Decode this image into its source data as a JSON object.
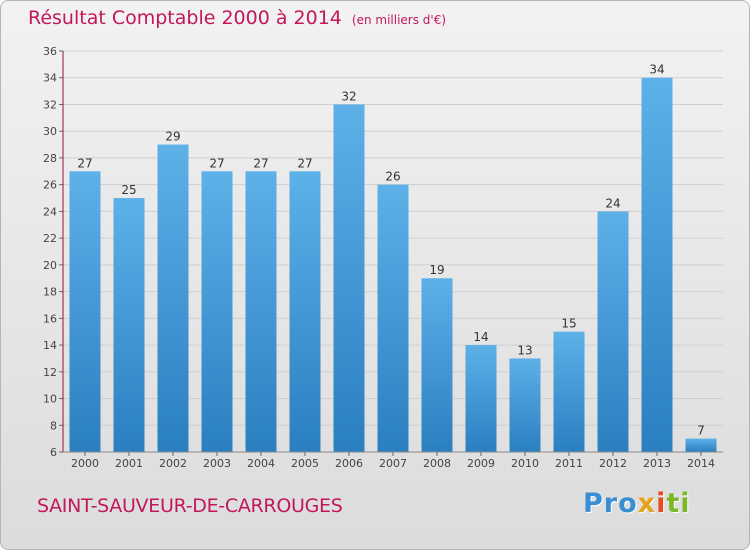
{
  "title": "Résultat Comptable 2000 à 2014",
  "subtitle": "(en milliers d'€)",
  "place": "SAINT-SAUVEUR-DE-CARROUGES",
  "logo": {
    "p1": "Pro",
    "p2": "x",
    "p3": "i",
    "p4": "ti"
  },
  "colors": {
    "title": "#c2185b",
    "bar_light": "#5eb0e8",
    "bar_dark": "#2a7fc0",
    "grid": "#cfcfcf"
  },
  "chart_data": {
    "type": "bar",
    "title": "Résultat Comptable 2000 à 2014",
    "xlabel": "",
    "ylabel": "",
    "categories": [
      "2000",
      "2001",
      "2002",
      "2003",
      "2004",
      "2005",
      "2006",
      "2007",
      "2008",
      "2009",
      "2010",
      "2011",
      "2012",
      "2013",
      "2014"
    ],
    "values": [
      27,
      25,
      29,
      27,
      27,
      27,
      32,
      26,
      19,
      14,
      13,
      15,
      24,
      34,
      7
    ],
    "ylim": [
      6,
      36
    ],
    "yticks": [
      6,
      8,
      10,
      12,
      14,
      16,
      18,
      20,
      22,
      24,
      26,
      28,
      30,
      32,
      34,
      36
    ],
    "grid": true
  }
}
